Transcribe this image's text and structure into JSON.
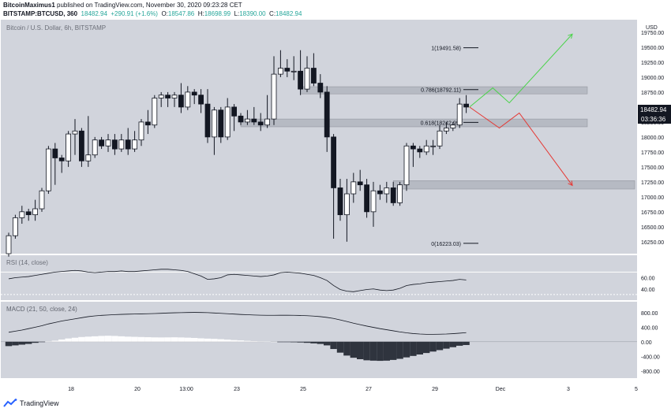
{
  "header": {
    "author": "BitcoinMaximus1",
    "published": "published on TradingView.com, November 30, 2020 09:23:28 CET",
    "symbol": "BITSTAMP:BTCUSD, 360",
    "last": "18482.94",
    "change": "+290.91 (+1.6%)",
    "o_label": "O:",
    "o_value": "18547.86",
    "h_label": "H:",
    "h_value": "18698.99",
    "l_label": "L:",
    "l_value": "18390.00",
    "c_label": "C:",
    "c_value": "18482.94"
  },
  "pane_title": "Bitcoin / U.S. Dollar, 6h, BITSTAMP",
  "currency": "USD",
  "price_label": "18482.94",
  "countdown_label": "03:36:36",
  "footer": {
    "brand": "TradingView"
  },
  "colors": {
    "bg": "#d1d4dc",
    "up_body": "#ffffff",
    "down_body": "#131722",
    "zone": "#b2b5be",
    "green_path": "#4cd34c",
    "red_path": "#e53935",
    "line": "#131722",
    "hist_up": "#ffffff",
    "hist_down": "#131722"
  },
  "chart_data": [
    {
      "type": "candlestick",
      "title": "Bitcoin / U.S. Dollar, 6h, BITSTAMP",
      "x_ticks": [
        "18",
        "20",
        "13:00",
        "23",
        "25",
        "27",
        "29",
        "Dec",
        "3",
        "5"
      ],
      "y_ticks": [
        16250,
        16500,
        16750,
        17000,
        17250,
        17500,
        17750,
        18000,
        18250,
        18500,
        18750,
        19000,
        19250,
        19500,
        19750
      ],
      "ylim": [
        16050,
        19960
      ],
      "candles": [
        [
          16050,
          16350,
          16000,
          16400
        ],
        [
          16350,
          16650,
          16300,
          16700
        ],
        [
          16650,
          16750,
          16550,
          16850
        ],
        [
          16750,
          16700,
          16600,
          16800
        ],
        [
          16700,
          16800,
          16600,
          16950
        ],
        [
          16800,
          17100,
          16750,
          17150
        ],
        [
          17100,
          17800,
          17050,
          17850
        ],
        [
          17800,
          17650,
          17200,
          17900
        ],
        [
          17650,
          17600,
          17400,
          17700
        ],
        [
          17600,
          18050,
          17500,
          18100
        ],
        [
          18050,
          18100,
          17700,
          18300
        ],
        [
          18100,
          17600,
          17500,
          18150
        ],
        [
          17600,
          17700,
          17500,
          18350
        ],
        [
          17700,
          17950,
          17650,
          18000
        ],
        [
          17950,
          17850,
          17800,
          18000
        ],
        [
          17850,
          17950,
          17750,
          18050
        ],
        [
          17950,
          17800,
          17700,
          18050
        ],
        [
          17800,
          17950,
          17750,
          18050
        ],
        [
          17950,
          17800,
          17700,
          18150
        ],
        [
          17800,
          17950,
          17750,
          18100
        ],
        [
          17950,
          18250,
          17850,
          18300
        ],
        [
          18250,
          18200,
          18050,
          18450
        ],
        [
          18200,
          18650,
          18150,
          18700
        ],
        [
          18650,
          18700,
          18500,
          18750
        ],
        [
          18700,
          18650,
          18500,
          18750
        ],
        [
          18650,
          18700,
          18500,
          18750
        ],
        [
          18700,
          18500,
          18400,
          18900
        ],
        [
          18500,
          18750,
          18450,
          18850
        ],
        [
          18750,
          18700,
          18550,
          18800
        ],
        [
          18700,
          18550,
          18400,
          18800
        ],
        [
          18550,
          18000,
          17900,
          18800
        ],
        [
          18000,
          18450,
          17700,
          18500
        ],
        [
          18450,
          18000,
          17900,
          18500
        ],
        [
          18000,
          18500,
          17950,
          18650
        ],
        [
          18500,
          18350,
          18100,
          18550
        ],
        [
          18350,
          18250,
          18200,
          18400
        ],
        [
          18250,
          18300,
          18200,
          18450
        ],
        [
          18300,
          18250,
          18200,
          18500
        ],
        [
          18250,
          18200,
          18100,
          18400
        ],
        [
          18200,
          18300,
          18150,
          18700
        ],
        [
          18300,
          19050,
          18200,
          19350
        ],
        [
          19050,
          19150,
          19000,
          19450
        ],
        [
          19150,
          19100,
          19000,
          19300
        ],
        [
          19100,
          19100,
          18950,
          19350
        ],
        [
          19100,
          18800,
          18700,
          19450
        ],
        [
          18800,
          19150,
          18750,
          19350
        ],
        [
          19150,
          18900,
          18850,
          19400
        ],
        [
          18900,
          18750,
          18650,
          19050
        ],
        [
          18750,
          18000,
          17750,
          18850
        ],
        [
          18000,
          17150,
          16300,
          18050
        ],
        [
          17150,
          16700,
          16600,
          17300
        ],
        [
          16700,
          17050,
          16250,
          17300
        ],
        [
          17050,
          17250,
          16900,
          17400
        ],
        [
          17250,
          17200,
          17100,
          17450
        ],
        [
          17200,
          16750,
          16650,
          17300
        ],
        [
          16750,
          17100,
          16500,
          17250
        ],
        [
          17100,
          17050,
          16950,
          17200
        ],
        [
          17050,
          17150,
          16900,
          17250
        ],
        [
          17150,
          16900,
          16850,
          17250
        ],
        [
          16900,
          17200,
          16850,
          17250
        ],
        [
          17200,
          17850,
          17100,
          17900
        ],
        [
          17850,
          17800,
          17500,
          17900
        ],
        [
          17800,
          17750,
          17650,
          17850
        ],
        [
          17750,
          17850,
          17700,
          17950
        ],
        [
          17850,
          17850,
          17700,
          17950
        ],
        [
          17850,
          18100,
          17800,
          18200
        ],
        [
          18100,
          18150,
          18050,
          18250
        ],
        [
          18150,
          18200,
          18100,
          18250
        ],
        [
          18200,
          18550,
          18150,
          18650
        ],
        [
          18550,
          18500,
          18400,
          18700
        ]
      ],
      "fibonacci": [
        {
          "label": "1(19491.58)",
          "value": 19491.58
        },
        {
          "label": "0.786(18792.11)",
          "value": 18792.11
        },
        {
          "label": "0.618(18242.99)",
          "value": 18242.99
        },
        {
          "label": "0(16223.03)",
          "value": 16223.03
        }
      ],
      "zones": [
        {
          "from": 18720,
          "to": 18840
        },
        {
          "from": 18170,
          "to": 18300
        },
        {
          "from": 17130,
          "to": 17270
        }
      ],
      "projections": [
        {
          "color": "green",
          "points": [
            [
              18500,
              69.5
            ],
            [
              18820,
              73
            ],
            [
              18570,
              75.5
            ],
            [
              19720,
              85
            ]
          ]
        },
        {
          "color": "red",
          "points": [
            [
              18500,
              69.5
            ],
            [
              18150,
              74
            ],
            [
              18400,
              77
            ],
            [
              17190,
              85
            ]
          ]
        }
      ]
    },
    {
      "type": "line",
      "title": "RSI (14, close)",
      "y_ticks": [
        40,
        60
      ],
      "ylim": [
        20,
        100
      ],
      "values": [
        58,
        60,
        61,
        62,
        64,
        66,
        68,
        70,
        71,
        72,
        73,
        72,
        70,
        69,
        70,
        71,
        71,
        72,
        71,
        71,
        72,
        73,
        74,
        75,
        75,
        74,
        73,
        71,
        67,
        63,
        57,
        58,
        60,
        65,
        66,
        65,
        64,
        63,
        62,
        63,
        65,
        69,
        70,
        69,
        68,
        66,
        64,
        60,
        55,
        46,
        39,
        36,
        35,
        37,
        39,
        40,
        38,
        37,
        38,
        41,
        46,
        48,
        49,
        51,
        52,
        53,
        54,
        55,
        57,
        56
      ]
    },
    {
      "type": "line+histogram",
      "title": "MACD (21, 50, close, 24)",
      "y_ticks": [
        800,
        400,
        0,
        -400,
        -800
      ],
      "ylim": [
        -1000,
        1100
      ],
      "series": [
        {
          "name": "MACD",
          "values": [
            260,
            290,
            320,
            360,
            400,
            440,
            490,
            530,
            570,
            600,
            630,
            660,
            690,
            710,
            725,
            735,
            745,
            752,
            758,
            762,
            766,
            770,
            775,
            782,
            790,
            796,
            800,
            804,
            806,
            804,
            799,
            790,
            780,
            770,
            760,
            750,
            742,
            735,
            730,
            727,
            726,
            728,
            728,
            726,
            722,
            716,
            705,
            690,
            668,
            640,
            600,
            555,
            510,
            470,
            430,
            395,
            360,
            330,
            300,
            270,
            245,
            225,
            212,
            205,
            204,
            207,
            212,
            222,
            235,
            250
          ]
        },
        {
          "name": "Histogram",
          "values": [
            -120,
            -100,
            -80,
            -60,
            -30,
            -10,
            10,
            30,
            60,
            90,
            110,
            130,
            140,
            150,
            160,
            165,
            160,
            150,
            140,
            135,
            130,
            125,
            120,
            118,
            120,
            122,
            118,
            112,
            104,
            94,
            86,
            80,
            70,
            58,
            46,
            38,
            26,
            18,
            10,
            5,
            0,
            -5,
            -10,
            -14,
            -20,
            -30,
            -45,
            -60,
            -100,
            -200,
            -300,
            -380,
            -440,
            -480,
            -510,
            -520,
            -525,
            -520,
            -500,
            -470,
            -430,
            -390,
            -350,
            -310,
            -270,
            -230,
            -190,
            -150,
            -110,
            -90
          ]
        }
      ]
    }
  ]
}
